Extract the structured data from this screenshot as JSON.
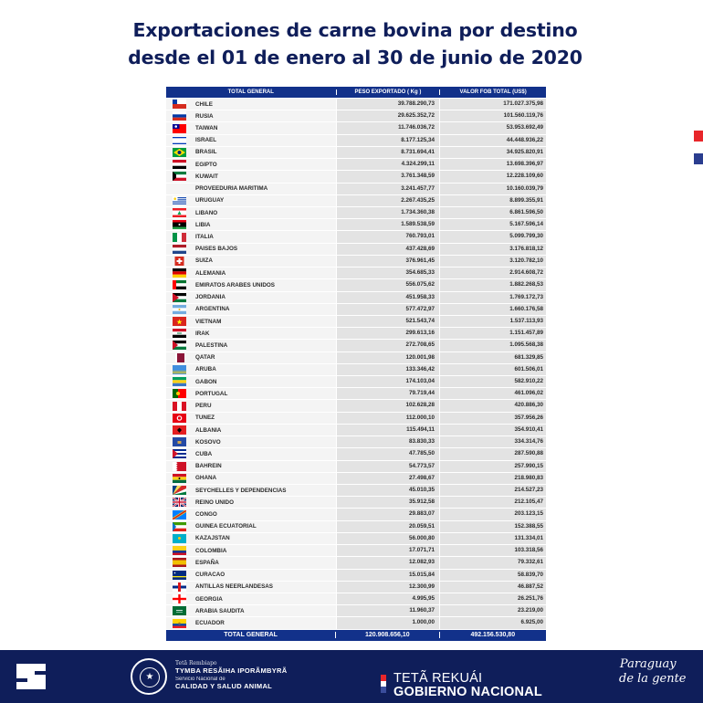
{
  "title": {
    "line1": "Exportaciones de carne bovina por destino",
    "line2": "desde el 01 de enero al 30 de junio de 2020"
  },
  "colors": {
    "navy": "#0f1e5a",
    "header_blue": "#12318a",
    "marker_red": "#e8262a",
    "marker_blue": "#2a3d8f"
  },
  "table": {
    "headers": [
      "TOTAL GENERAL",
      "PESO EXPORTADO ( Kg )",
      "VALOR FOB TOTAL (US$)"
    ],
    "rows": [
      {
        "country": "CHILE",
        "flag": "chile-flag-icon",
        "kg": "39.788.290,73",
        "usd": "171.027.375,98"
      },
      {
        "country": "RUSIA",
        "flag": "russia-flag-icon",
        "kg": "29.625.352,72",
        "usd": "101.560.119,76"
      },
      {
        "country": "TAIWAN",
        "flag": "taiwan-flag-icon",
        "kg": "11.746.036,72",
        "usd": "53.953.692,49"
      },
      {
        "country": "ISRAEL",
        "flag": "israel-flag-icon",
        "kg": "8.177.125,34",
        "usd": "44.448.936,22"
      },
      {
        "country": "BRASIL",
        "flag": "brazil-flag-icon",
        "kg": "8.731.694,41",
        "usd": "34.925.820,91"
      },
      {
        "country": "EGIPTO",
        "flag": "egypt-flag-icon",
        "kg": "4.324.299,11",
        "usd": "13.698.396,97"
      },
      {
        "country": "KUWAIT",
        "flag": "kuwait-flag-icon",
        "kg": "3.761.348,59",
        "usd": "12.228.109,60"
      },
      {
        "country": "PROVEEDURIA MARITIMA",
        "flag": "",
        "kg": "3.241.457,77",
        "usd": "10.160.039,79"
      },
      {
        "country": "URUGUAY",
        "flag": "uruguay-flag-icon",
        "kg": "2.267.435,25",
        "usd": "8.899.355,91"
      },
      {
        "country": "LIBANO",
        "flag": "lebanon-flag-icon",
        "kg": "1.734.360,38",
        "usd": "6.861.596,50"
      },
      {
        "country": "LIBIA",
        "flag": "libya-flag-icon",
        "kg": "1.589.538,59",
        "usd": "5.167.596,14"
      },
      {
        "country": "ITALIA",
        "flag": "italy-flag-icon",
        "kg": "760.793,01",
        "usd": "5.099.799,30"
      },
      {
        "country": "PAISES BAJOS",
        "flag": "netherlands-flag-icon",
        "kg": "437.428,69",
        "usd": "3.176.818,12"
      },
      {
        "country": "SUIZA",
        "flag": "switzerland-flag-icon",
        "kg": "376.961,45",
        "usd": "3.120.782,10"
      },
      {
        "country": "ALEMANIA",
        "flag": "germany-flag-icon",
        "kg": "354.685,33",
        "usd": "2.914.608,72"
      },
      {
        "country": "EMIRATOS ARABES UNIDOS",
        "flag": "uae-flag-icon",
        "kg": "556.075,62",
        "usd": "1.882.268,53"
      },
      {
        "country": "JORDANIA",
        "flag": "jordan-flag-icon",
        "kg": "451.958,33",
        "usd": "1.769.172,73"
      },
      {
        "country": "ARGENTINA",
        "flag": "argentina-flag-icon",
        "kg": "577.472,97",
        "usd": "1.660.176,58"
      },
      {
        "country": "VIETNAM",
        "flag": "vietnam-flag-icon",
        "kg": "521.543,74",
        "usd": "1.537.113,93"
      },
      {
        "country": "IRAK",
        "flag": "iraq-flag-icon",
        "kg": "299.613,16",
        "usd": "1.151.457,89"
      },
      {
        "country": "PALESTINA",
        "flag": "palestine-flag-icon",
        "kg": "272.708,65",
        "usd": "1.095.568,38"
      },
      {
        "country": "QATAR",
        "flag": "qatar-flag-icon",
        "kg": "120.001,98",
        "usd": "681.329,85"
      },
      {
        "country": "ARUBA",
        "flag": "aruba-flag-icon",
        "kg": "133.346,42",
        "usd": "601.506,01"
      },
      {
        "country": "GABON",
        "flag": "gabon-flag-icon",
        "kg": "174.103,04",
        "usd": "582.910,22"
      },
      {
        "country": "PORTUGAL",
        "flag": "portugal-flag-icon",
        "kg": "79.719,44",
        "usd": "461.096,02"
      },
      {
        "country": "PERU",
        "flag": "peru-flag-icon",
        "kg": "102.628,28",
        "usd": "420.886,30"
      },
      {
        "country": "TUNEZ",
        "flag": "tunisia-flag-icon",
        "kg": "112.000,10",
        "usd": "357.956,26"
      },
      {
        "country": "ALBANIA",
        "flag": "albania-flag-icon",
        "kg": "115.494,11",
        "usd": "354.910,41"
      },
      {
        "country": "KOSOVO",
        "flag": "kosovo-flag-icon",
        "kg": "83.830,33",
        "usd": "334.314,76"
      },
      {
        "country": "CUBA",
        "flag": "cuba-flag-icon",
        "kg": "47.785,50",
        "usd": "287.590,88"
      },
      {
        "country": "BAHREIN",
        "flag": "bahrain-flag-icon",
        "kg": "54.773,57",
        "usd": "257.990,15"
      },
      {
        "country": "GHANA",
        "flag": "ghana-flag-icon",
        "kg": "27.498,67",
        "usd": "218.980,83"
      },
      {
        "country": "SEYCHELLES Y DEPENDENCIAS",
        "flag": "seychelles-flag-icon",
        "kg": "45.010,35",
        "usd": "214.527,23"
      },
      {
        "country": "REINO UNIDO",
        "flag": "uk-flag-icon",
        "kg": "35.912,58",
        "usd": "212.105,47"
      },
      {
        "country": "CONGO",
        "flag": "congo-flag-icon",
        "kg": "29.883,07",
        "usd": "203.123,15"
      },
      {
        "country": "GUINEA ECUATORIAL",
        "flag": "equatorial-guinea-flag-icon",
        "kg": "20.059,51",
        "usd": "152.388,55"
      },
      {
        "country": "KAZAJSTAN",
        "flag": "kazakhstan-flag-icon",
        "kg": "56.000,80",
        "usd": "131.334,01"
      },
      {
        "country": "COLOMBIA",
        "flag": "colombia-flag-icon",
        "kg": "17.071,71",
        "usd": "103.318,56"
      },
      {
        "country": "ESPAÑA",
        "flag": "spain-flag-icon",
        "kg": "12.082,93",
        "usd": "79.332,61"
      },
      {
        "country": "CURACAO",
        "flag": "curacao-flag-icon",
        "kg": "15.015,84",
        "usd": "58.839,70"
      },
      {
        "country": "ANTILLAS NEERLANDESAS",
        "flag": "netherlands-antilles-flag-icon",
        "kg": "12.300,99",
        "usd": "46.887,52"
      },
      {
        "country": "GEORGIA",
        "flag": "georgia-flag-icon",
        "kg": "4.995,95",
        "usd": "26.251,76"
      },
      {
        "country": "ARABIA SAUDITA",
        "flag": "saudi-arabia-flag-icon",
        "kg": "11.960,37",
        "usd": "23.219,00"
      },
      {
        "country": "ECUADOR",
        "flag": "ecuador-flag-icon",
        "kg": "1.000,00",
        "usd": "6.925,00"
      }
    ],
    "total": {
      "label": "TOTAL GENERAL",
      "kg": "120.908.656,10",
      "usd": "492.156.530,80"
    }
  },
  "footer": {
    "senacsa_line1": "Tetã Rembiapo",
    "senacsa_line2": "TYMBA RESÃIHA IPORÃMBYRÃ",
    "senacsa_line3": "Servicio Nacional de",
    "senacsa_line4": "CALIDAD Y SALUD ANIMAL",
    "gob_line1": "TETÃ REKUÁI",
    "gob_line2": "GOBIERNO NACIONAL",
    "slogan_line1": "Paraguay",
    "slogan_line2": "de la gente",
    "seal_glyph": "★"
  }
}
